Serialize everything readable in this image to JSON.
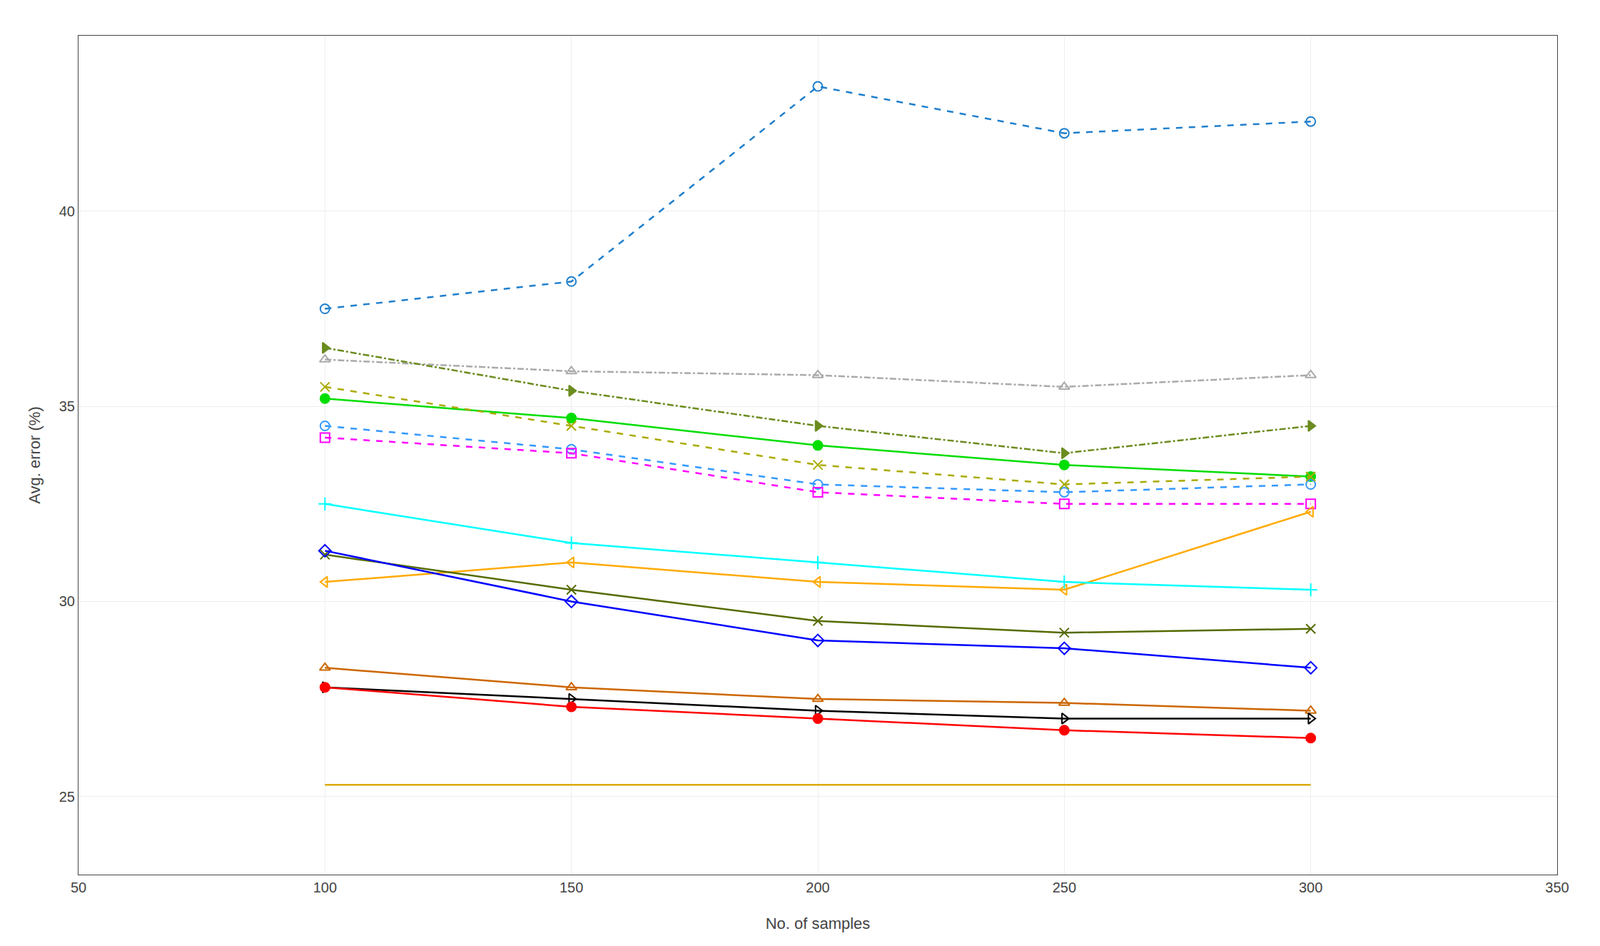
{
  "chart_data": {
    "type": "line",
    "xlabel": "No. of samples",
    "ylabel": "Avg. error (%)",
    "x": [
      100,
      150,
      200,
      250,
      300
    ],
    "series": [
      {
        "color": "#1f7fcc",
        "line_style": "dashed",
        "marker": "circle-open",
        "values": [
          37.5,
          38.2,
          43.2,
          42.0,
          42.3
        ]
      },
      {
        "color": "#aaaaaa",
        "line_style": "dashdot",
        "marker": "triangle-up-open",
        "values": [
          36.2,
          35.9,
          35.8,
          35.5,
          35.8
        ]
      },
      {
        "color": "#6b8c1e",
        "line_style": "dashdot",
        "marker": "triangle-right",
        "values": [
          36.5,
          35.4,
          34.5,
          33.8,
          34.5
        ]
      },
      {
        "color": "#00dd00",
        "line_style": "solid",
        "marker": "circle",
        "values": [
          35.2,
          34.7,
          34.0,
          33.5,
          33.2
        ]
      },
      {
        "color": "#3399ff",
        "line_style": "dashed",
        "marker": "circle-open",
        "values": [
          34.5,
          33.9,
          33.0,
          32.8,
          33.0
        ]
      },
      {
        "color": "#ff00ff",
        "line_style": "dashed",
        "marker": "square-open",
        "values": [
          34.2,
          33.8,
          32.8,
          32.5,
          32.5
        ]
      },
      {
        "color": "#aaaa00",
        "line_style": "dashed",
        "marker": "x",
        "values": [
          35.5,
          34.5,
          33.5,
          33.0,
          33.2
        ]
      },
      {
        "color": "#ffaa00",
        "line_style": "solid",
        "marker": "triangle-left-open",
        "values": [
          30.5,
          31.0,
          30.5,
          30.3,
          32.3
        ]
      },
      {
        "color": "#00ffff",
        "line_style": "solid",
        "marker": "plus",
        "values": [
          32.5,
          31.5,
          31.0,
          30.5,
          30.3
        ]
      },
      {
        "color": "#556b00",
        "line_style": "solid",
        "marker": "x",
        "values": [
          31.2,
          30.3,
          29.5,
          29.2,
          29.3
        ]
      },
      {
        "color": "#0000ff",
        "line_style": "solid",
        "marker": "diamond-open",
        "values": [
          31.3,
          30.0,
          29.0,
          28.8,
          28.3
        ]
      },
      {
        "color": "#cc6600",
        "line_style": "solid",
        "marker": "triangle-up-open",
        "values": [
          28.3,
          27.8,
          27.5,
          27.4,
          27.2
        ]
      },
      {
        "color": "#000000",
        "line_style": "solid",
        "marker": "triangle-right-open",
        "values": [
          27.8,
          27.5,
          27.2,
          27.0,
          27.0
        ]
      },
      {
        "color": "#ff0000",
        "line_style": "solid",
        "marker": "circle",
        "values": [
          27.8,
          27.3,
          27.0,
          26.7,
          26.5
        ]
      },
      {
        "color": "#ddaa00",
        "line_style": "solid",
        "values": [
          25.3,
          25.3,
          25.3,
          25.3,
          25.3
        ]
      }
    ],
    "xlim": [
      50,
      350
    ],
    "ylim": [
      23.0,
      44.5
    ],
    "xticks": [
      50,
      100,
      150,
      200,
      250,
      300,
      350
    ],
    "yticks": [
      25,
      30,
      35,
      40
    ],
    "grid": true
  }
}
